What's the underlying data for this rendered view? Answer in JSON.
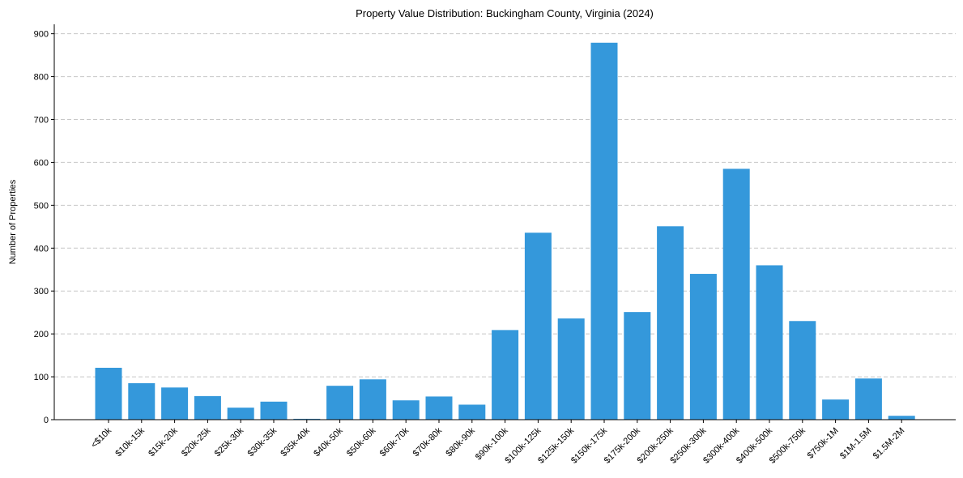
{
  "chart_data": {
    "type": "bar",
    "title": "Property Value Distribution: Buckingham County, Virginia (2024)",
    "xlabel": "",
    "ylabel": "Number of Properties",
    "categories": [
      "<$10k",
      "$10k-15k",
      "$15k-20k",
      "$20k-25k",
      "$25k-30k",
      "$30k-35k",
      "$35k-40k",
      "$40k-50k",
      "$50k-60k",
      "$60k-70k",
      "$70k-80k",
      "$80k-90k",
      "$90k-100k",
      "$100k-125k",
      "$125k-150k",
      "$150k-175k",
      "$175k-200k",
      "$200k-250k",
      "$250k-300k",
      "$300k-400k",
      "$400k-500k",
      "$500k-750k",
      "$750k-1M",
      "$1M-1.5M",
      "$1.5M-2M"
    ],
    "values": [
      121,
      85,
      75,
      55,
      28,
      42,
      2,
      79,
      94,
      45,
      54,
      35,
      209,
      436,
      236,
      879,
      251,
      451,
      340,
      585,
      360,
      230,
      47,
      96,
      9
    ],
    "ylim": [
      0,
      922
    ],
    "yticks": [
      0,
      100,
      200,
      300,
      400,
      500,
      600,
      700,
      800,
      900
    ],
    "grid": {
      "y": true,
      "x": false,
      "style": "dashed"
    },
    "legend": null,
    "bar_color": "#3498db",
    "xtick_rotation": -45
  }
}
